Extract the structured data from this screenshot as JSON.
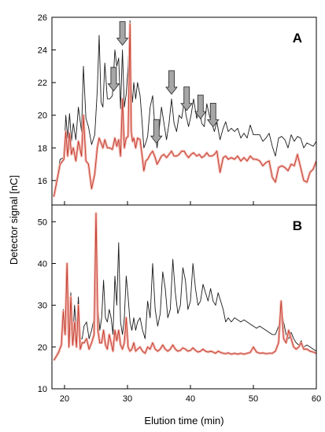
{
  "chart_data": {
    "type": "line",
    "xlabel": "Elution time (min)",
    "ylabel": "Detector signal [nC]",
    "xlim": [
      18,
      60
    ],
    "xticks": [
      20,
      30,
      40,
      50,
      60
    ],
    "colors": {
      "black": "#1a1a1a",
      "red": "#c0392b"
    },
    "panels": [
      {
        "label": "A",
        "ylim": [
          14.5,
          26
        ],
        "yticks": [
          16,
          18,
          20,
          22,
          24,
          26
        ],
        "arrows_x": [
          27.8,
          29.2,
          34.6,
          37.0,
          39.4,
          41.6,
          43.6
        ],
        "series": [
          {
            "color": "black",
            "x": [
              18.3,
              19.3,
              19.9,
              20.2,
              20.5,
              20.8,
              21.1,
              21.4,
              21.8,
              22.2,
              22.7,
              23.0,
              23.4,
              23.8,
              24.3,
              24.8,
              25.2,
              25.5,
              25.8,
              26.1,
              26.4,
              26.8,
              27.2,
              27.6,
              28.0,
              28.3,
              28.6,
              28.9,
              29.2,
              29.5,
              29.8,
              30.1,
              30.4,
              30.6,
              30.8,
              31.0,
              31.3,
              31.6,
              32.0,
              32.3,
              32.6,
              32.9,
              33.2,
              33.6,
              34.0,
              34.4,
              34.7,
              35.0,
              35.4,
              35.8,
              36.2,
              36.6,
              37.0,
              37.4,
              37.8,
              38.2,
              38.6,
              39.0,
              39.3,
              39.7,
              40.1,
              40.5,
              41.0,
              41.4,
              41.8,
              42.2,
              42.6,
              43.0,
              43.4,
              43.8,
              44.2,
              44.7,
              45.2,
              45.6,
              46.0,
              46.5,
              47.0,
              47.5,
              48.0,
              48.5,
              49.0,
              49.5,
              50.0,
              50.5,
              51.0,
              51.5,
              52.0,
              52.5,
              53.0,
              53.5,
              54.0,
              54.5,
              55.0,
              55.5,
              56.0,
              56.5,
              57.0,
              57.5,
              58.0,
              58.5,
              59.0,
              59.5,
              60.0
            ],
            "y": [
              15.2,
              17.3,
              17.4,
              20.0,
              18.6,
              20.1,
              18.4,
              19.5,
              18.5,
              20.5,
              19.0,
              23.0,
              19.8,
              19.3,
              18.2,
              18.8,
              21.5,
              24.9,
              20.8,
              20.5,
              23.2,
              21.0,
              21.0,
              21.2,
              24.0,
              23.0,
              23.5,
              20.4,
              24.0,
              20.5,
              21.3,
              23.0,
              25.8,
              21.8,
              20.8,
              22.0,
              21.0,
              22.0,
              21.2,
              19.7,
              18.0,
              18.3,
              18.7,
              20.5,
              21.2,
              19.0,
              18.0,
              19.0,
              20.5,
              19.5,
              18.5,
              19.5,
              21.0,
              19.5,
              19.0,
              20.0,
              19.8,
              20.8,
              20.0,
              19.3,
              20.0,
              21.0,
              19.8,
              20.4,
              19.5,
              19.3,
              20.7,
              20.0,
              19.5,
              19.0,
              19.6,
              18.5,
              19.2,
              19.6,
              19.0,
              19.2,
              19.0,
              19.2,
              18.6,
              18.9,
              18.6,
              19.4,
              18.8,
              18.8,
              18.8,
              18.4,
              18.6,
              18.9,
              18.1,
              17.5,
              18.6,
              18.7,
              18.5,
              18.0,
              18.8,
              18.4,
              18.7,
              18.6,
              18.0,
              18.3,
              18.2,
              18.1,
              18.4
            ]
          },
          {
            "color": "red",
            "x": [
              18.3,
              19.3,
              19.9,
              20.2,
              20.5,
              20.8,
              21.1,
              21.4,
              21.8,
              22.2,
              22.7,
              23.0,
              23.4,
              23.8,
              24.3,
              24.8,
              25.2,
              25.5,
              25.8,
              26.1,
              26.4,
              26.8,
              27.2,
              27.6,
              28.0,
              28.3,
              28.6,
              28.9,
              29.2,
              29.5,
              29.8,
              30.1,
              30.4,
              30.6,
              30.8,
              31.0,
              31.3,
              31.6,
              32.0,
              32.3,
              32.6,
              32.9,
              33.2,
              33.6,
              34.0,
              34.4,
              34.7,
              35.0,
              35.4,
              35.8,
              36.2,
              36.6,
              37.0,
              37.4,
              37.8,
              38.2,
              38.6,
              39.0,
              39.3,
              39.7,
              40.1,
              40.5,
              41.0,
              41.4,
              41.8,
              42.2,
              42.6,
              43.0,
              43.4,
              43.8,
              44.2,
              44.7,
              45.2,
              45.6,
              46.0,
              46.5,
              47.0,
              47.5,
              48.0,
              48.5,
              49.0,
              49.5,
              50.0,
              50.5,
              51.0,
              51.5,
              52.0,
              52.5,
              53.0,
              53.5,
              54.0,
              54.5,
              55.0,
              55.5,
              56.0,
              56.5,
              57.0,
              57.5,
              58.0,
              58.5,
              59.0,
              59.5,
              60.0
            ],
            "y": [
              15.0,
              17.0,
              17.3,
              19.0,
              17.5,
              18.9,
              17.6,
              18.0,
              17.2,
              18.4,
              17.5,
              20.0,
              17.2,
              17.0,
              15.5,
              16.4,
              18.0,
              18.6,
              18.3,
              18.0,
              18.5,
              18.0,
              18.0,
              17.9,
              18.6,
              18.1,
              18.5,
              17.5,
              21.0,
              18.0,
              18.6,
              18.7,
              25.6,
              19.0,
              18.4,
              18.6,
              18.0,
              18.6,
              18.5,
              17.6,
              16.6,
              17.2,
              17.3,
              17.6,
              17.8,
              17.4,
              17.0,
              17.2,
              17.5,
              17.6,
              17.4,
              17.6,
              17.8,
              17.5,
              17.5,
              17.6,
              17.8,
              17.8,
              17.6,
              17.4,
              17.6,
              17.7,
              17.5,
              17.6,
              17.4,
              17.5,
              17.7,
              17.5,
              17.5,
              17.6,
              17.8,
              16.5,
              17.4,
              17.5,
              17.3,
              17.4,
              17.3,
              17.5,
              17.2,
              17.4,
              17.2,
              17.5,
              17.3,
              17.3,
              17.2,
              16.9,
              17.1,
              17.2,
              16.2,
              15.9,
              16.8,
              16.9,
              16.8,
              16.6,
              17.0,
              16.9,
              17.6,
              16.8,
              16.0,
              15.9,
              16.5,
              16.7,
              17.2
            ]
          }
        ]
      },
      {
        "label": "B",
        "ylim": [
          10,
          54
        ],
        "yticks": [
          10,
          20,
          30,
          40,
          50
        ],
        "series": [
          {
            "color": "black",
            "x": [
              18.3,
              19.0,
              19.5,
              19.8,
              20.1,
              20.4,
              20.7,
              21.0,
              21.3,
              21.6,
              21.9,
              22.2,
              22.5,
              22.8,
              23.1,
              23.5,
              23.9,
              24.3,
              24.7,
              25.0,
              25.3,
              25.6,
              25.9,
              26.2,
              26.5,
              26.8,
              27.1,
              27.4,
              27.7,
              28.0,
              28.3,
              28.6,
              28.9,
              29.2,
              29.5,
              29.8,
              30.1,
              30.4,
              30.7,
              31.0,
              31.3,
              31.6,
              32.0,
              32.4,
              32.8,
              33.2,
              33.6,
              34.0,
              34.4,
              34.8,
              35.2,
              35.6,
              36.0,
              36.4,
              36.8,
              37.2,
              37.6,
              38.0,
              38.4,
              38.8,
              39.2,
              39.6,
              40.0,
              40.4,
              40.8,
              41.2,
              41.6,
              42.0,
              42.4,
              42.8,
              43.2,
              43.6,
              44.0,
              44.4,
              44.8,
              45.2,
              45.6,
              46.0,
              46.5,
              47.0,
              47.5,
              48.0,
              48.5,
              49.0,
              49.5,
              50.0,
              50.5,
              51.0,
              51.5,
              52.0,
              52.5,
              53.0,
              53.5,
              54.0,
              54.4,
              54.8,
              55.2,
              55.6,
              56.0,
              56.4,
              56.8,
              57.2,
              57.6,
              58.0,
              58.5,
              59.0,
              59.5,
              60.0
            ],
            "y": [
              17.0,
              19.0,
              21.0,
              29.0,
              24.0,
              39.0,
              21.0,
              33.0,
              22.0,
              30.0,
              23.0,
              32.0,
              22.0,
              22.0,
              25.0,
              26.0,
              22.0,
              24.0,
              27.0,
              49.0,
              30.0,
              24.0,
              27.0,
              36.0,
              27.0,
              26.0,
              29.0,
              27.0,
              23.0,
              37.0,
              30.0,
              45.0,
              26.0,
              23.0,
              27.0,
              37.0,
              32.0,
              26.0,
              24.0,
              27.0,
              24.0,
              26.0,
              27.0,
              24.0,
              22.0,
              31.0,
              27.0,
              40.0,
              29.0,
              25.0,
              28.0,
              38.0,
              34.0,
              27.0,
              29.0,
              41.0,
              33.0,
              28.0,
              30.0,
              39.0,
              36.0,
              29.0,
              31.0,
              40.0,
              34.0,
              30.0,
              31.0,
              35.0,
              33.0,
              31.0,
              34.0,
              31.0,
              30.0,
              33.0,
              31.0,
              29.0,
              26.0,
              27.0,
              26.0,
              27.0,
              26.5,
              26.0,
              26.5,
              26.0,
              25.5,
              25.0,
              24.5,
              25.0,
              24.5,
              24.0,
              23.5,
              23.0,
              23.0,
              25.0,
              30.0,
              26.0,
              23.0,
              22.0,
              23.5,
              22.0,
              21.0,
              20.5,
              21.5,
              20.0,
              20.5,
              20.0,
              19.5,
              19.0
            ]
          },
          {
            "color": "red",
            "x": [
              18.3,
              19.0,
              19.5,
              19.8,
              20.1,
              20.4,
              20.7,
              21.0,
              21.3,
              21.6,
              21.9,
              22.2,
              22.5,
              22.8,
              23.1,
              23.5,
              23.9,
              24.3,
              24.7,
              25.0,
              25.3,
              25.6,
              25.9,
              26.2,
              26.5,
              26.8,
              27.1,
              27.4,
              27.7,
              28.0,
              28.3,
              28.6,
              28.9,
              29.2,
              29.5,
              29.8,
              30.1,
              30.4,
              30.7,
              31.0,
              31.3,
              31.6,
              32.0,
              32.4,
              32.8,
              33.2,
              33.6,
              34.0,
              34.4,
              34.8,
              35.2,
              35.6,
              36.0,
              36.4,
              36.8,
              37.2,
              37.6,
              38.0,
              38.4,
              38.8,
              39.2,
              39.6,
              40.0,
              40.4,
              40.8,
              41.2,
              41.6,
              42.0,
              42.4,
              42.8,
              43.2,
              43.6,
              44.0,
              44.4,
              44.8,
              45.2,
              45.6,
              46.0,
              46.5,
              47.0,
              47.5,
              48.0,
              48.5,
              49.0,
              49.5,
              50.0,
              50.5,
              51.0,
              51.5,
              52.0,
              52.5,
              53.0,
              53.5,
              54.0,
              54.4,
              54.8,
              55.2,
              55.6,
              56.0,
              56.4,
              56.8,
              57.2,
              57.6,
              58.0,
              58.5,
              59.0,
              59.5,
              60.0
            ],
            "y": [
              16.8,
              18.5,
              20.5,
              28.5,
              23.0,
              40.0,
              20.0,
              32.0,
              20.5,
              26.0,
              20.0,
              30.0,
              19.5,
              21.0,
              21.0,
              22.0,
              19.5,
              21.0,
              23.0,
              52.0,
              24.0,
              21.0,
              21.0,
              24.0,
              20.5,
              19.5,
              23.0,
              21.0,
              19.0,
              24.0,
              21.5,
              24.0,
              20.5,
              19.5,
              21.0,
              27.0,
              20.0,
              19.0,
              19.5,
              21.0,
              19.0,
              19.5,
              20.0,
              19.0,
              18.5,
              20.0,
              19.5,
              21.0,
              19.5,
              19.0,
              19.5,
              20.5,
              19.5,
              19.0,
              19.5,
              20.5,
              19.5,
              19.0,
              19.2,
              19.8,
              19.5,
              19.0,
              19.2,
              19.8,
              19.2,
              18.8,
              19.0,
              19.5,
              19.0,
              18.8,
              19.0,
              18.8,
              18.5,
              19.0,
              18.7,
              18.5,
              18.4,
              18.6,
              18.3,
              18.5,
              18.3,
              18.5,
              18.3,
              18.5,
              18.7,
              20.0,
              18.8,
              18.5,
              18.6,
              18.4,
              18.5,
              18.5,
              19.0,
              21.0,
              31.0,
              22.0,
              21.0,
              24.0,
              22.0,
              20.0,
              19.5,
              20.0,
              21.0,
              19.5,
              19.5,
              19.0,
              18.8,
              18.5
            ]
          }
        ]
      }
    ]
  }
}
